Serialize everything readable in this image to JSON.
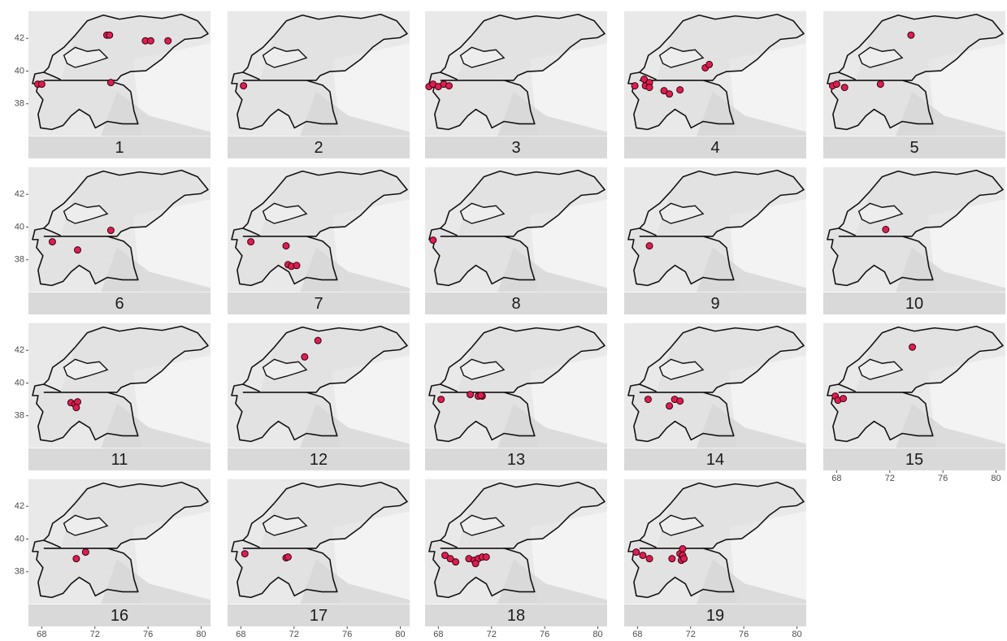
{
  "chart_data": [
    {
      "type": "scatter",
      "title": "1",
      "color": "#dc1e50",
      "xlim": [
        67,
        80.7
      ],
      "ylim": [
        36,
        43.7
      ],
      "yticks": [
        38,
        40,
        42
      ],
      "x": [
        67.7,
        68.0,
        73.2,
        72.9,
        73.1,
        75.8,
        76.2,
        77.5
      ],
      "y": [
        39.2,
        39.2,
        39.3,
        42.2,
        42.2,
        41.85,
        41.85,
        41.85
      ]
    },
    {
      "type": "scatter",
      "title": "2",
      "color": "#dc1e50",
      "xlim": [
        67,
        80.7
      ],
      "ylim": [
        36,
        43.7
      ],
      "x": [
        68.2
      ],
      "y": [
        39.1
      ]
    },
    {
      "type": "scatter",
      "title": "3",
      "color": "#dc1e50",
      "xlim": [
        67,
        80.7
      ],
      "ylim": [
        36,
        43.7
      ],
      "x": [
        67.3,
        67.6,
        68.0,
        68.4,
        68.8
      ],
      "y": [
        39.05,
        39.2,
        39.05,
        39.2,
        39.1
      ]
    },
    {
      "type": "scatter",
      "title": "4",
      "color": "#dc1e50",
      "xlim": [
        67,
        80.7
      ],
      "ylim": [
        36,
        43.7
      ],
      "x": [
        67.8,
        68.5,
        68.6,
        68.9,
        68.9,
        70.0,
        70.4,
        71.2,
        73.1,
        73.4
      ],
      "y": [
        39.1,
        39.5,
        39.1,
        39.3,
        39.0,
        38.8,
        38.6,
        38.85,
        40.2,
        40.4
      ]
    },
    {
      "type": "scatter",
      "title": "5",
      "color": "#dc1e50",
      "xlim": [
        67,
        80.7
      ],
      "ylim": [
        36,
        43.7
      ],
      "x": [
        67.7,
        68.0,
        68.6,
        71.3,
        73.6
      ],
      "y": [
        39.1,
        39.2,
        39.0,
        39.2,
        42.2
      ]
    },
    {
      "type": "scatter",
      "title": "6",
      "color": "#dc1e50",
      "xlim": [
        67,
        80.7
      ],
      "ylim": [
        36,
        43.7
      ],
      "yticks": [
        38,
        40,
        42
      ],
      "x": [
        68.8,
        70.7,
        73.2
      ],
      "y": [
        39.1,
        38.6,
        39.8
      ]
    },
    {
      "type": "scatter",
      "title": "7",
      "color": "#dc1e50",
      "xlim": [
        67,
        80.7
      ],
      "ylim": [
        36,
        43.7
      ],
      "x": [
        68.75,
        71.4,
        71.55,
        71.8,
        72.2
      ],
      "y": [
        39.1,
        38.85,
        37.7,
        37.6,
        37.65
      ]
    },
    {
      "type": "scatter",
      "title": "8",
      "color": "#dc1e50",
      "xlim": [
        67,
        80.7
      ],
      "ylim": [
        36,
        43.7
      ],
      "x": [
        67.6
      ],
      "y": [
        39.2
      ]
    },
    {
      "type": "scatter",
      "title": "9",
      "color": "#dc1e50",
      "xlim": [
        67,
        80.7
      ],
      "ylim": [
        36,
        43.7
      ],
      "x": [
        68.9
      ],
      "y": [
        38.85
      ]
    },
    {
      "type": "scatter",
      "title": "10",
      "color": "#dc1e50",
      "xlim": [
        67,
        80.7
      ],
      "ylim": [
        36,
        43.7
      ],
      "x": [
        71.7
      ],
      "y": [
        39.85
      ]
    },
    {
      "type": "scatter",
      "title": "11",
      "color": "#dc1e50",
      "xlim": [
        67,
        80.7
      ],
      "ylim": [
        36,
        43.7
      ],
      "yticks": [
        38,
        40,
        42
      ],
      "x": [
        70.2,
        70.5,
        70.7,
        70.6
      ],
      "y": [
        38.8,
        38.7,
        38.85,
        38.5
      ]
    },
    {
      "type": "scatter",
      "title": "12",
      "color": "#dc1e50",
      "xlim": [
        67,
        80.7
      ],
      "ylim": [
        36,
        43.7
      ],
      "x": [
        72.8,
        73.8
      ],
      "y": [
        41.6,
        42.6
      ]
    },
    {
      "type": "scatter",
      "title": "13",
      "color": "#dc1e50",
      "xlim": [
        67,
        80.7
      ],
      "ylim": [
        36,
        43.7
      ],
      "x": [
        68.2,
        70.4,
        71.0,
        71.3,
        71.2
      ],
      "y": [
        39.0,
        39.3,
        39.2,
        39.2,
        39.25
      ]
    },
    {
      "type": "scatter",
      "title": "14",
      "color": "#dc1e50",
      "xlim": [
        67,
        80.7
      ],
      "ylim": [
        36,
        43.7
      ],
      "x": [
        68.8,
        70.4,
        70.8,
        71.2
      ],
      "y": [
        39.0,
        38.6,
        39.0,
        38.9
      ]
    },
    {
      "type": "scatter",
      "title": "15",
      "color": "#dc1e50",
      "xlim": [
        67,
        80.7
      ],
      "ylim": [
        36,
        43.7
      ],
      "xticks": [
        68,
        72,
        76,
        80
      ],
      "x": [
        67.9,
        68.1,
        68.5,
        73.7
      ],
      "y": [
        39.2,
        38.95,
        39.05,
        42.2
      ]
    },
    {
      "type": "scatter",
      "title": "16",
      "color": "#dc1e50",
      "xlim": [
        67,
        80.7
      ],
      "ylim": [
        36,
        43.7
      ],
      "yticks": [
        38,
        40,
        42
      ],
      "xticks": [
        68,
        72,
        76,
        80
      ],
      "x": [
        70.6,
        71.3
      ],
      "y": [
        38.8,
        39.2
      ]
    },
    {
      "type": "scatter",
      "title": "17",
      "color": "#dc1e50",
      "xlim": [
        67,
        80.7
      ],
      "ylim": [
        36,
        43.7
      ],
      "xticks": [
        68,
        72,
        76,
        80
      ],
      "x": [
        68.3,
        71.4,
        71.55
      ],
      "y": [
        39.1,
        38.85,
        38.9
      ]
    },
    {
      "type": "scatter",
      "title": "18",
      "color": "#dc1e50",
      "xlim": [
        67,
        80.7
      ],
      "ylim": [
        36,
        43.7
      ],
      "xticks": [
        68,
        72,
        76,
        80
      ],
      "x": [
        68.5,
        68.9,
        69.3,
        70.3,
        70.7,
        71.0,
        71.3,
        71.6,
        70.8
      ],
      "y": [
        39.0,
        38.8,
        38.6,
        38.8,
        38.7,
        38.8,
        38.9,
        38.9,
        38.5
      ]
    },
    {
      "type": "scatter",
      "title": "19",
      "color": "#dc1e50",
      "xlim": [
        67,
        80.7
      ],
      "ylim": [
        36,
        43.7
      ],
      "xticks": [
        68,
        72,
        76,
        80
      ],
      "x": [
        67.9,
        68.4,
        68.9,
        70.6,
        71.2,
        71.4,
        71.4,
        71.3,
        71.5
      ],
      "y": [
        39.2,
        39.0,
        38.8,
        38.8,
        39.1,
        39.4,
        39.0,
        38.7,
        38.8
      ]
    }
  ]
}
